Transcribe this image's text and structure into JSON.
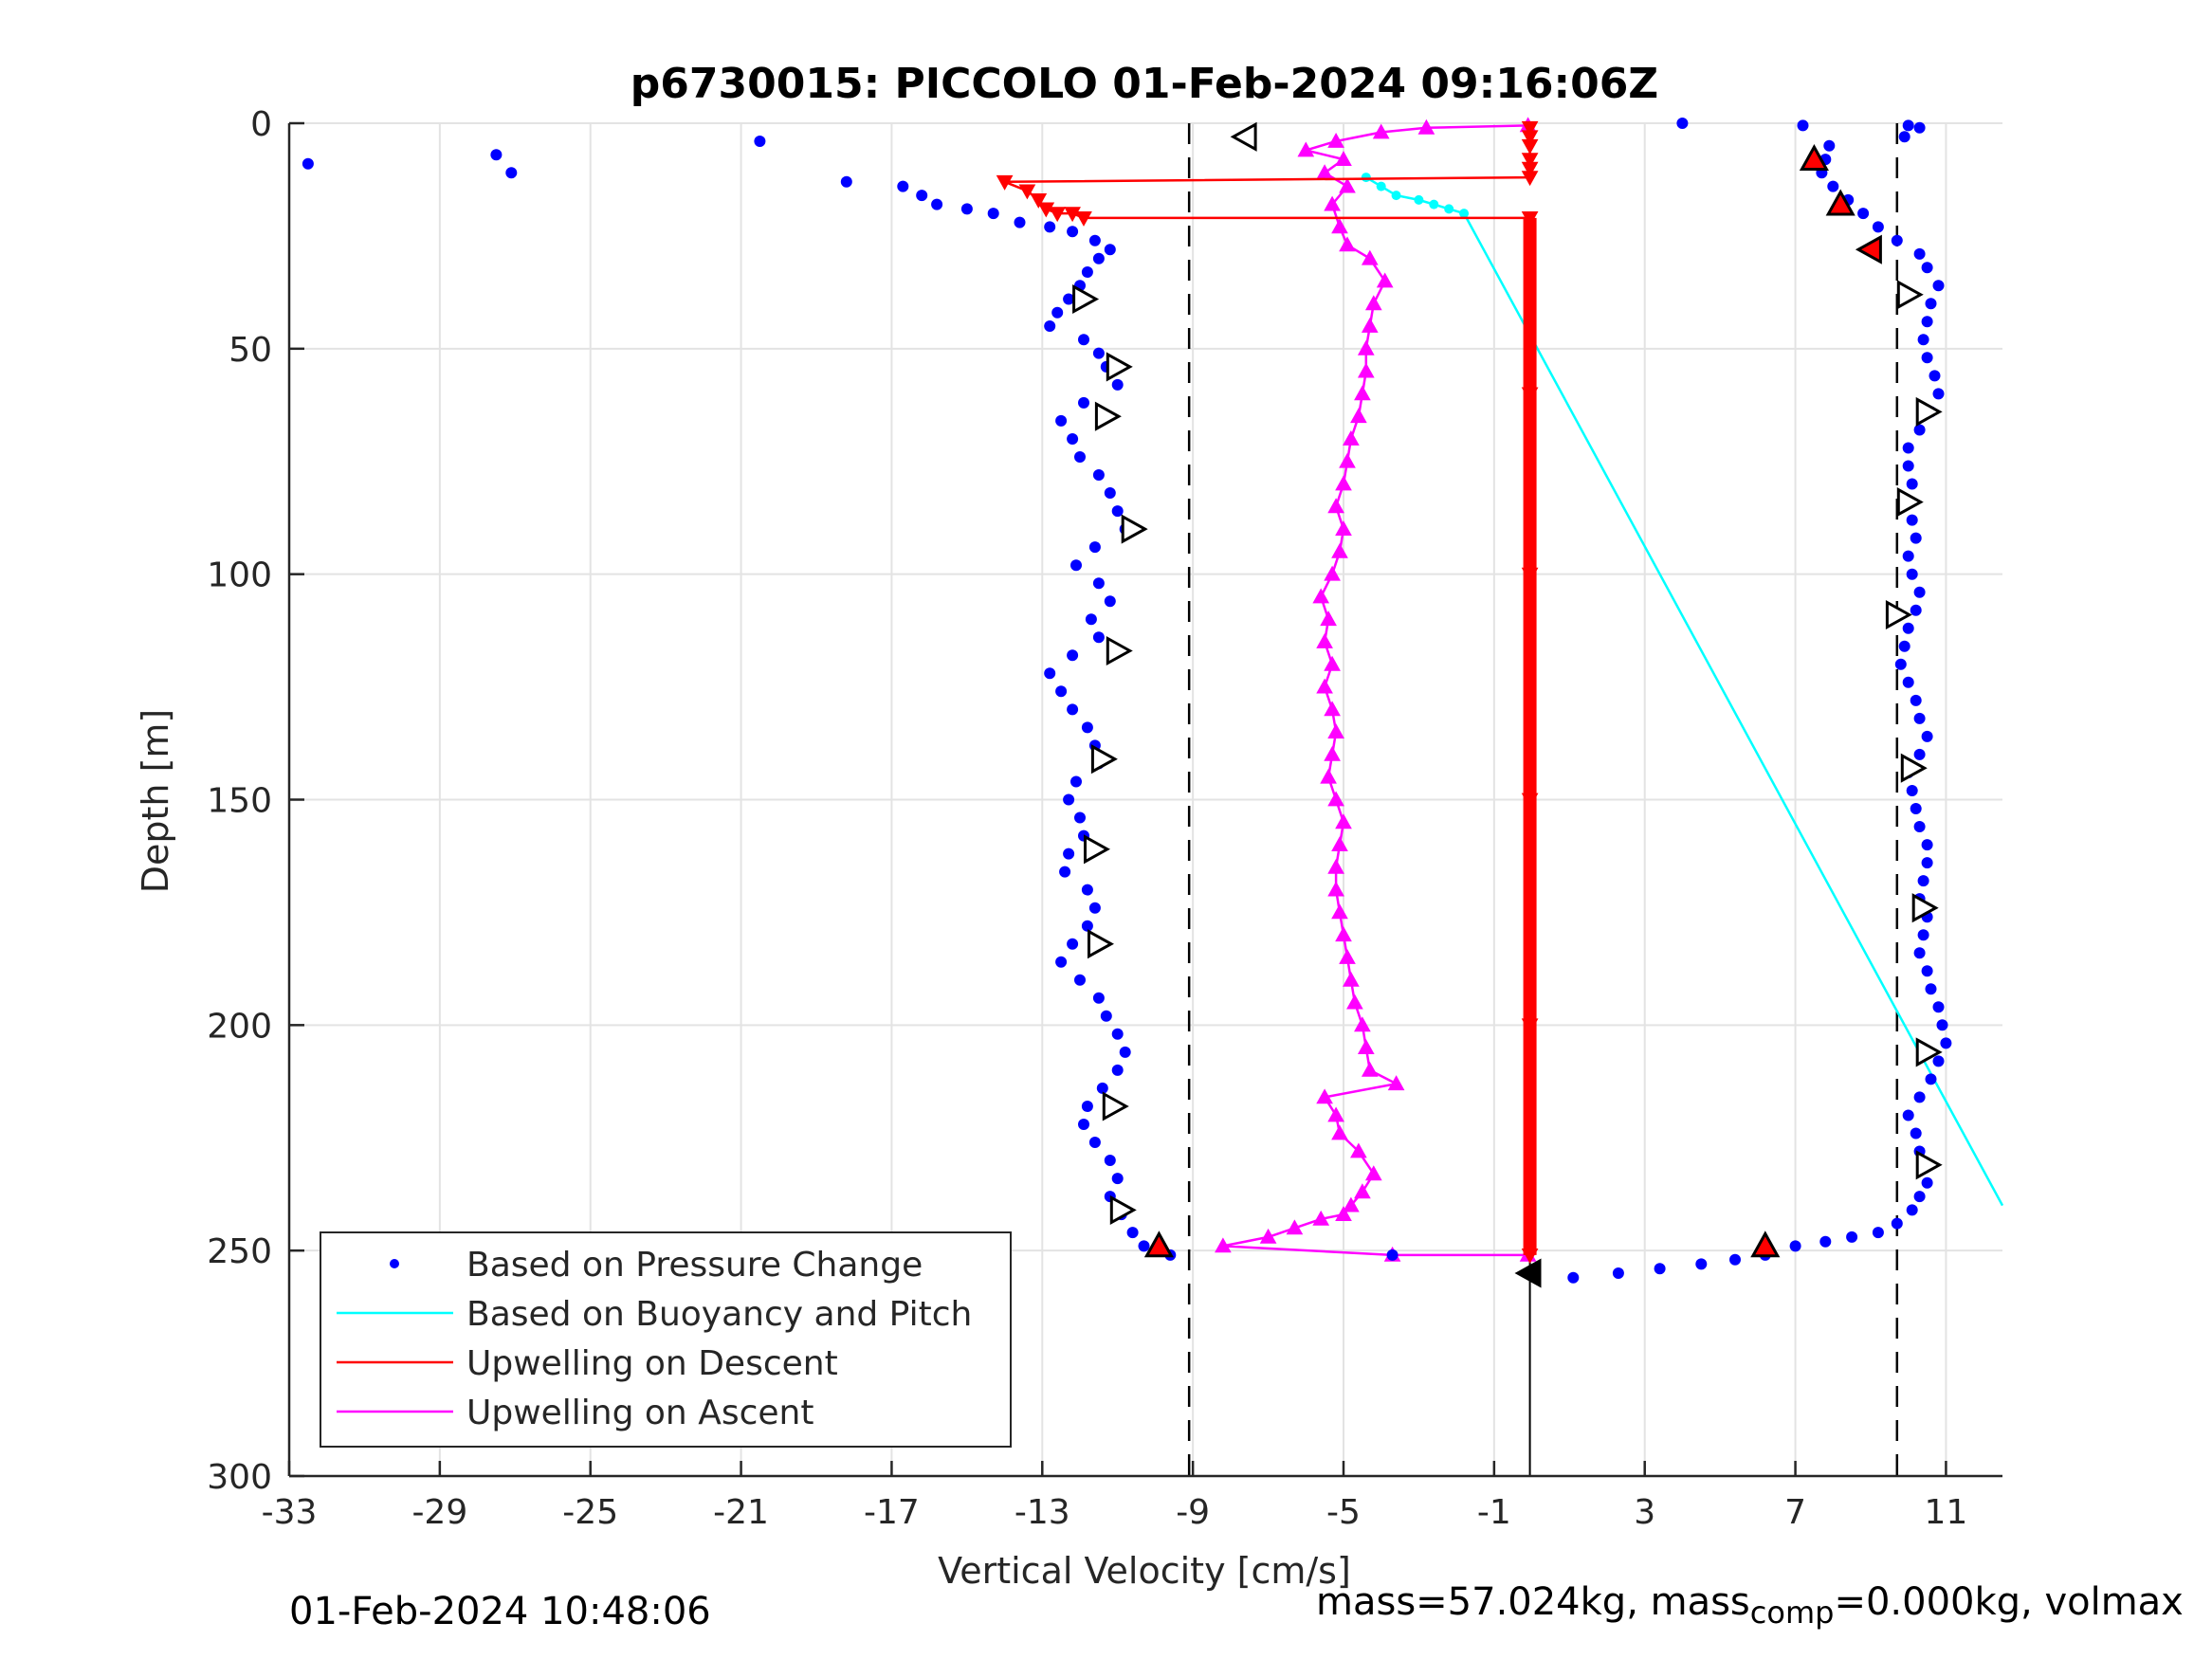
{
  "chart_data": {
    "type": "scatter",
    "title": "p6730015: PICCOLO 01-Feb-2024 09:16:06Z",
    "xlabel": "Vertical Velocity [cm/s]",
    "ylabel": "Depth [m]",
    "xlim": [
      -33,
      12.5
    ],
    "ylim": [
      0,
      300
    ],
    "y_reversed": true,
    "grid": true,
    "legend_position": "bottom-left",
    "xticks": [
      -33,
      -29,
      -25,
      -21,
      -17,
      -13,
      -9,
      -5,
      -1,
      3,
      7,
      11
    ],
    "xtick_labels": [
      "-33",
      "-29",
      "-25",
      "-21",
      "-17",
      "-13",
      "-9",
      "-5",
      "-1",
      "3",
      "7",
      "11"
    ],
    "yticks": [
      0,
      50,
      100,
      150,
      200,
      250,
      300
    ],
    "ytick_labels": [
      "0",
      "50",
      "100",
      "150",
      "200",
      "250",
      "300"
    ],
    "reference_lines": {
      "dashed_x": [
        -9.1,
        9.7
      ],
      "solid_x": -0.05
    },
    "colors": {
      "pressure": "#0000ff",
      "buoyancy": "#00ffff",
      "descent": "#ff0000",
      "ascent": "#ff00ff",
      "grid": "#e3e3e3",
      "axis": "#262626"
    },
    "series": [
      {
        "name": "Based on Pressure Change",
        "style": "dots",
        "descent_points": [
          [
            -32.5,
            9
          ],
          [
            -27.5,
            7
          ],
          [
            -27.1,
            11
          ],
          [
            -20.5,
            4
          ],
          [
            -18.2,
            13
          ],
          [
            -16.7,
            14
          ],
          [
            -16.2,
            16
          ],
          [
            -15.8,
            18
          ],
          [
            -15.0,
            19
          ],
          [
            -14.3,
            20
          ],
          [
            -13.6,
            22
          ],
          [
            -12.8,
            23
          ],
          [
            -12.2,
            24
          ],
          [
            -11.6,
            26
          ],
          [
            -11.2,
            28
          ],
          [
            -11.5,
            30
          ],
          [
            -11.8,
            33
          ],
          [
            -12.0,
            36
          ],
          [
            -12.3,
            39
          ],
          [
            -12.6,
            42
          ],
          [
            -12.8,
            45
          ],
          [
            -11.9,
            48
          ],
          [
            -11.5,
            51
          ],
          [
            -11.3,
            54
          ],
          [
            -11.0,
            58
          ],
          [
            -11.9,
            62
          ],
          [
            -12.5,
            66
          ],
          [
            -12.2,
            70
          ],
          [
            -12.0,
            74
          ],
          [
            -11.5,
            78
          ],
          [
            -11.2,
            82
          ],
          [
            -11.0,
            86
          ],
          [
            -10.8,
            90
          ],
          [
            -11.6,
            94
          ],
          [
            -12.1,
            98
          ],
          [
            -11.5,
            102
          ],
          [
            -11.2,
            106
          ],
          [
            -11.7,
            110
          ],
          [
            -11.5,
            114
          ],
          [
            -12.2,
            118
          ],
          [
            -12.8,
            122
          ],
          [
            -12.5,
            126
          ],
          [
            -12.2,
            130
          ],
          [
            -11.8,
            134
          ],
          [
            -11.6,
            138
          ],
          [
            -11.5,
            142
          ],
          [
            -12.1,
            146
          ],
          [
            -12.3,
            150
          ],
          [
            -12.0,
            154
          ],
          [
            -11.9,
            158
          ],
          [
            -12.3,
            162
          ],
          [
            -12.4,
            166
          ],
          [
            -11.8,
            170
          ],
          [
            -11.6,
            174
          ],
          [
            -11.8,
            178
          ],
          [
            -12.2,
            182
          ],
          [
            -12.5,
            186
          ],
          [
            -12.0,
            190
          ],
          [
            -11.5,
            194
          ],
          [
            -11.3,
            198
          ],
          [
            -11.0,
            202
          ],
          [
            -10.8,
            206
          ],
          [
            -11.0,
            210
          ],
          [
            -11.4,
            214
          ],
          [
            -11.8,
            218
          ],
          [
            -11.9,
            222
          ],
          [
            -11.6,
            226
          ],
          [
            -11.2,
            230
          ],
          [
            -11.0,
            234
          ],
          [
            -11.2,
            238
          ],
          [
            -10.9,
            242
          ],
          [
            -10.6,
            246
          ],
          [
            -10.3,
            249
          ],
          [
            -9.6,
            251
          ],
          [
            -3.7,
            251
          ]
        ],
        "ascent_points": [
          [
            1.1,
            256
          ],
          [
            2.3,
            255
          ],
          [
            3.4,
            254
          ],
          [
            4.5,
            253
          ],
          [
            5.4,
            252
          ],
          [
            6.2,
            251
          ],
          [
            7.0,
            249
          ],
          [
            7.8,
            248
          ],
          [
            8.5,
            247
          ],
          [
            9.2,
            246
          ],
          [
            9.7,
            244
          ],
          [
            10.1,
            241
          ],
          [
            10.3,
            238
          ],
          [
            10.5,
            235
          ],
          [
            10.4,
            231
          ],
          [
            10.3,
            228
          ],
          [
            10.2,
            224
          ],
          [
            10.0,
            220
          ],
          [
            10.3,
            216
          ],
          [
            10.6,
            212
          ],
          [
            10.8,
            208
          ],
          [
            11.0,
            204
          ],
          [
            10.9,
            200
          ],
          [
            10.8,
            196
          ],
          [
            10.6,
            192
          ],
          [
            10.5,
            188
          ],
          [
            10.3,
            184
          ],
          [
            10.4,
            180
          ],
          [
            10.5,
            176
          ],
          [
            10.3,
            172
          ],
          [
            10.4,
            168
          ],
          [
            10.5,
            164
          ],
          [
            10.5,
            160
          ],
          [
            10.3,
            156
          ],
          [
            10.2,
            152
          ],
          [
            10.1,
            148
          ],
          [
            10.0,
            144
          ],
          [
            10.3,
            140
          ],
          [
            10.5,
            136
          ],
          [
            10.3,
            132
          ],
          [
            10.2,
            128
          ],
          [
            10.0,
            124
          ],
          [
            9.8,
            120
          ],
          [
            9.9,
            116
          ],
          [
            10.0,
            112
          ],
          [
            10.2,
            108
          ],
          [
            10.3,
            104
          ],
          [
            10.1,
            100
          ],
          [
            10.0,
            96
          ],
          [
            10.2,
            92
          ],
          [
            10.1,
            88
          ],
          [
            10.0,
            84
          ],
          [
            10.1,
            80
          ],
          [
            10.0,
            76
          ],
          [
            10.0,
            72
          ],
          [
            10.3,
            68
          ],
          [
            10.6,
            64
          ],
          [
            10.8,
            60
          ],
          [
            10.7,
            56
          ],
          [
            10.5,
            52
          ],
          [
            10.4,
            48
          ],
          [
            10.5,
            44
          ],
          [
            10.6,
            40
          ],
          [
            10.8,
            36
          ],
          [
            10.5,
            32
          ],
          [
            10.3,
            29
          ],
          [
            9.7,
            26
          ],
          [
            9.2,
            23
          ],
          [
            8.8,
            20
          ],
          [
            8.4,
            17
          ],
          [
            8.0,
            14
          ],
          [
            7.7,
            11
          ],
          [
            7.8,
            8
          ],
          [
            7.9,
            5
          ],
          [
            9.9,
            3
          ],
          [
            10.3,
            1
          ],
          [
            10.0,
            0.5
          ],
          [
            7.2,
            0.5
          ],
          [
            4.0,
            0
          ]
        ]
      },
      {
        "name": "Based on Buoyancy and Pitch",
        "style": "line",
        "points": [
          [
            -4.4,
            12
          ],
          [
            -4.0,
            14
          ],
          [
            -3.6,
            16
          ],
          [
            -3.0,
            17
          ],
          [
            -2.6,
            18
          ],
          [
            -2.2,
            19
          ],
          [
            -1.8,
            20
          ],
          [
            12.5,
            240
          ]
        ]
      },
      {
        "name": "Upwelling on Descent",
        "style": "line-triangle-down",
        "points": [
          [
            -0.05,
            1
          ],
          [
            -0.05,
            3
          ],
          [
            -0.05,
            5
          ],
          [
            -0.05,
            8
          ],
          [
            -0.05,
            10
          ],
          [
            -0.05,
            12
          ],
          [
            -14.0,
            13
          ],
          [
            -13.4,
            15
          ],
          [
            -13.1,
            17
          ],
          [
            -12.9,
            19
          ],
          [
            -12.6,
            20
          ],
          [
            -12.2,
            20
          ],
          [
            -11.9,
            21
          ],
          [
            -0.05,
            21
          ],
          [
            -0.05,
            60
          ],
          [
            -0.05,
            100
          ],
          [
            -0.05,
            150
          ],
          [
            -0.05,
            200
          ],
          [
            -0.05,
            251
          ]
        ]
      },
      {
        "name": "Upwelling on Ascent",
        "style": "line-triangle-up",
        "points": [
          [
            -0.1,
            251
          ],
          [
            -3.7,
            251
          ],
          [
            -8.2,
            249
          ],
          [
            -7.0,
            247
          ],
          [
            -6.3,
            245
          ],
          [
            -5.6,
            243
          ],
          [
            -5.0,
            242
          ],
          [
            -4.8,
            240
          ],
          [
            -4.5,
            237
          ],
          [
            -4.2,
            233
          ],
          [
            -4.6,
            228
          ],
          [
            -5.1,
            224
          ],
          [
            -5.2,
            220
          ],
          [
            -5.5,
            216
          ],
          [
            -3.6,
            213
          ],
          [
            -4.3,
            210
          ],
          [
            -4.4,
            205
          ],
          [
            -4.5,
            200
          ],
          [
            -4.7,
            195
          ],
          [
            -4.8,
            190
          ],
          [
            -4.9,
            185
          ],
          [
            -5.0,
            180
          ],
          [
            -5.1,
            175
          ],
          [
            -5.2,
            170
          ],
          [
            -5.2,
            165
          ],
          [
            -5.1,
            160
          ],
          [
            -5.0,
            155
          ],
          [
            -5.2,
            150
          ],
          [
            -5.4,
            145
          ],
          [
            -5.3,
            140
          ],
          [
            -5.2,
            135
          ],
          [
            -5.3,
            130
          ],
          [
            -5.5,
            125
          ],
          [
            -5.3,
            120
          ],
          [
            -5.5,
            115
          ],
          [
            -5.4,
            110
          ],
          [
            -5.6,
            105
          ],
          [
            -5.3,
            100
          ],
          [
            -5.1,
            95
          ],
          [
            -5.0,
            90
          ],
          [
            -5.2,
            85
          ],
          [
            -5.0,
            80
          ],
          [
            -4.9,
            75
          ],
          [
            -4.8,
            70
          ],
          [
            -4.6,
            65
          ],
          [
            -4.5,
            60
          ],
          [
            -4.4,
            55
          ],
          [
            -4.4,
            50
          ],
          [
            -4.3,
            45
          ],
          [
            -4.2,
            40
          ],
          [
            -3.9,
            35
          ],
          [
            -4.3,
            30
          ],
          [
            -4.9,
            27
          ],
          [
            -5.1,
            23
          ],
          [
            -5.3,
            18
          ],
          [
            -4.9,
            14
          ],
          [
            -5.5,
            11
          ],
          [
            -5.0,
            8
          ],
          [
            -6.0,
            6
          ],
          [
            -5.2,
            4
          ],
          [
            -4.0,
            2
          ],
          [
            -2.8,
            1
          ],
          [
            -0.1,
            0.5
          ]
        ]
      }
    ],
    "flag_markers": {
      "open_triangles": [
        [
          -7.6,
          3,
          "left"
        ],
        [
          -11.9,
          39,
          "right"
        ],
        [
          -11.0,
          54,
          "right"
        ],
        [
          -11.3,
          65,
          "right"
        ],
        [
          -10.6,
          90,
          "right"
        ],
        [
          -11.0,
          117,
          "right"
        ],
        [
          -11.4,
          141,
          "right"
        ],
        [
          -11.6,
          161,
          "right"
        ],
        [
          -11.5,
          182,
          "right"
        ],
        [
          -11.1,
          218,
          "right"
        ],
        [
          -10.9,
          241,
          "right"
        ],
        [
          10.0,
          38,
          "right"
        ],
        [
          10.5,
          64,
          "right"
        ],
        [
          10.0,
          84,
          "right"
        ],
        [
          9.7,
          109,
          "right"
        ],
        [
          10.1,
          143,
          "right"
        ],
        [
          10.4,
          174,
          "right"
        ],
        [
          10.5,
          206,
          "right"
        ],
        [
          10.5,
          231,
          "right"
        ]
      ],
      "filled_triangles": [
        [
          7.5,
          8,
          "up"
        ],
        [
          8.2,
          18,
          "up"
        ],
        [
          9.0,
          28,
          "left"
        ],
        [
          6.2,
          249,
          "up"
        ],
        [
          -9.9,
          249,
          "up"
        ],
        [
          -0.05,
          255,
          "left"
        ]
      ]
    },
    "legend": [
      {
        "label": "Based on Pressure Change",
        "series": 0
      },
      {
        "label": "Based on Buoyancy and Pitch",
        "series": 1
      },
      {
        "label": "Upwelling on Descent",
        "series": 2
      },
      {
        "label": "Upwelling on Ascent",
        "series": 3
      }
    ]
  },
  "footer": {
    "timestamp": "01-Feb-2024 10:48:06",
    "mass_text": "mass=57.024kg, mass",
    "mass_sub": "comp",
    "mass_rest": "=0.000kg, volmax"
  }
}
